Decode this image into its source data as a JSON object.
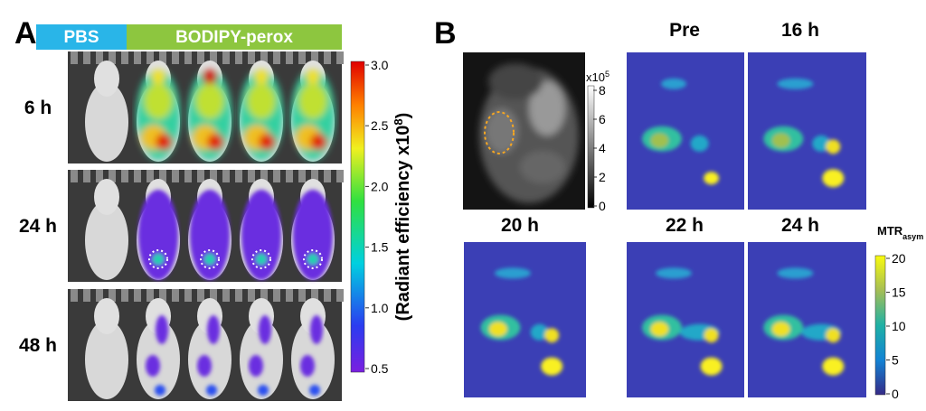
{
  "panel_a": {
    "label": "A",
    "header": {
      "control": "PBS",
      "treatment": "BODIPY-perox"
    },
    "rows": [
      "6 h",
      "24 h",
      "48 h"
    ],
    "colorbar": {
      "title": "(Radiant efficiency x10",
      "title_sup": "8",
      "title_end": ")",
      "ticks": [
        "3.0",
        "2.5",
        "2.0",
        "1.5",
        "1.0",
        "0.5"
      ]
    }
  },
  "panel_b": {
    "label": "B",
    "anatomy_colorbar": {
      "unit": "x10",
      "unit_sup": "5",
      "ticks": [
        "8",
        "6",
        "4",
        "2",
        "0"
      ]
    },
    "timepoints": [
      "Pre",
      "16 h",
      "20 h",
      "22 h",
      "24 h"
    ],
    "colorbar": {
      "title": "MTR",
      "title_sub": "asym",
      "ticks": [
        "20",
        "15",
        "10",
        "5",
        "0"
      ]
    }
  }
}
